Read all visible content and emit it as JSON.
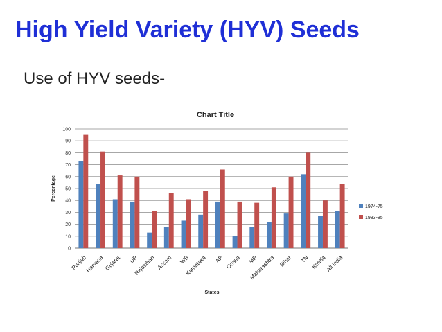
{
  "slide": {
    "title": "High Yield Variety (HYV) Seeds",
    "subtitle": "Use of HYV seeds-"
  },
  "colors": {
    "title": "#1f2fd6",
    "series_1974": "#4f81bd",
    "series_1983": "#c0504d",
    "grid": "#8a8a8a"
  },
  "chart_data": {
    "type": "bar",
    "title": "Chart Title",
    "xlabel": "States",
    "ylabel": "Percentage",
    "ylim": [
      0,
      100
    ],
    "yticks": [
      0,
      10,
      20,
      30,
      40,
      50,
      60,
      70,
      80,
      90,
      100
    ],
    "grid": true,
    "legend_position": "right",
    "categories": [
      "Punjab",
      "Haryana",
      "Gujarat",
      "UP",
      "Rajasthan",
      "Assam",
      "WB",
      "Karnataka",
      "AP",
      "Orissa",
      "MP",
      "Maharashtra",
      "Bihar",
      "TN",
      "Kerala",
      "All India"
    ],
    "series": [
      {
        "name": "1974-75",
        "color": "#4f81bd",
        "values": [
          73,
          54,
          41,
          39,
          13,
          18,
          23,
          28,
          39,
          10,
          18,
          22,
          29,
          62,
          27,
          31
        ]
      },
      {
        "name": "1983-85",
        "color": "#c0504d",
        "values": [
          95,
          81,
          61,
          60,
          31,
          46,
          41,
          48,
          66,
          39,
          38,
          51,
          60,
          80,
          40,
          54
        ]
      }
    ]
  }
}
